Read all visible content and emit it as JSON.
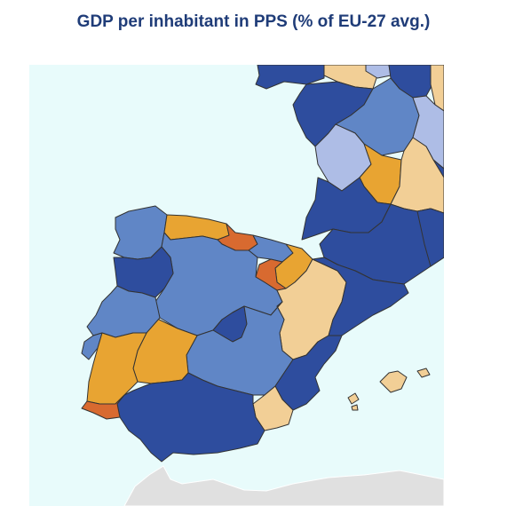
{
  "title": "GDP per inhabitant in PPS (% of EU-27 avg.)",
  "colors": {
    "sea": "#e8fbfb",
    "outside_land": "#e0e0e0",
    "dark_blue": "#2e4d9e",
    "mid_blue": "#6086c6",
    "light_blue": "#aebde6",
    "light_orange": "#f2cf96",
    "orange": "#e8a432",
    "dark_orange": "#d86a30"
  },
  "regions": [
    {
      "name": "galicia-region",
      "color": "mid_blue"
    },
    {
      "name": "asturias-region",
      "color": "orange"
    },
    {
      "name": "cantabria-region",
      "color": "dark_orange"
    },
    {
      "name": "basque-country-region",
      "color": "mid_blue"
    },
    {
      "name": "navarra-region",
      "color": "orange"
    },
    {
      "name": "la-rioja-region",
      "color": "dark_orange"
    },
    {
      "name": "castilla-leon-region",
      "color": "mid_blue"
    },
    {
      "name": "madrid-region",
      "color": "dark_blue"
    },
    {
      "name": "castilla-la-mancha-region",
      "color": "mid_blue"
    },
    {
      "name": "extremadura-region",
      "color": "orange"
    },
    {
      "name": "aragon-region",
      "color": "light_orange"
    },
    {
      "name": "catalonia-region",
      "color": "dark_blue"
    },
    {
      "name": "valencia-region",
      "color": "dark_blue"
    },
    {
      "name": "murcia-region",
      "color": "light_orange"
    },
    {
      "name": "andalusia-region",
      "color": "dark_blue"
    },
    {
      "name": "balearic-islands-region",
      "color": "light_orange"
    },
    {
      "name": "norte-portugal-region",
      "color": "dark_blue"
    },
    {
      "name": "centro-portugal-region",
      "color": "mid_blue"
    },
    {
      "name": "lisboa-region",
      "color": "mid_blue"
    },
    {
      "name": "alentejo-region",
      "color": "orange"
    },
    {
      "name": "algarve-region",
      "color": "dark_orange"
    },
    {
      "name": "bretagne-region",
      "color": "dark_blue"
    },
    {
      "name": "pays-de-la-loire-region",
      "color": "dark_blue"
    },
    {
      "name": "centre-val-de-loire-region",
      "color": "mid_blue"
    },
    {
      "name": "nouvelle-aquitaine-north-region",
      "color": "light_blue"
    },
    {
      "name": "limousin-region",
      "color": "orange"
    },
    {
      "name": "auvergne-region",
      "color": "light_orange"
    },
    {
      "name": "aquitaine-south-region",
      "color": "dark_blue"
    },
    {
      "name": "midi-pyrenees-region",
      "color": "dark_blue"
    },
    {
      "name": "languedoc-region",
      "color": "dark_blue"
    },
    {
      "name": "normandie-region",
      "color": "light_orange"
    },
    {
      "name": "ile-de-france-region",
      "color": "dark_blue"
    },
    {
      "name": "bourgogne-region",
      "color": "light_blue"
    },
    {
      "name": "rhone-alpes-region",
      "color": "dark_blue"
    },
    {
      "name": "north-edge-region",
      "color": "light_orange"
    },
    {
      "name": "northeast-edge-region",
      "color": "light_blue"
    }
  ]
}
